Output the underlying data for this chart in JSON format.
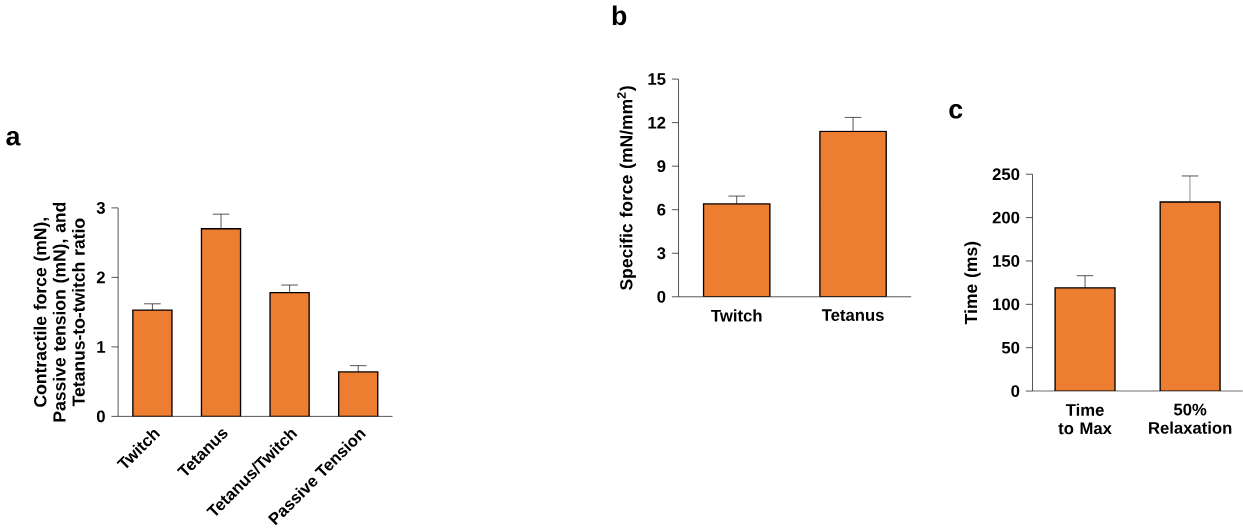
{
  "chart_data": [
    {
      "type": "bar",
      "title": "a",
      "ylabel": "Contractile force (mN), Passive tension (mN), and Tetanus-to-twitch ratio",
      "categories": [
        "Twitch",
        "Tetanus",
        "Tetanus/Twitch",
        "Passive Tension"
      ],
      "values": [
        1.53,
        2.7,
        1.78,
        0.64
      ],
      "errors": [
        0.09,
        0.21,
        0.11,
        0.09
      ],
      "color": "#ed7d31",
      "ylim": [
        0,
        3
      ],
      "yticks": [
        0,
        1,
        2,
        3
      ]
    },
    {
      "type": "bar",
      "title": "b",
      "ylabel": "Specific force (mN/mm$^{2}$)",
      "categories": [
        "Twitch",
        "Tetanus"
      ],
      "values": [
        6.4,
        11.4
      ],
      "errors": [
        0.54,
        0.96
      ],
      "color": "#ed7d31",
      "ylim": [
        0,
        15
      ],
      "yticks": [
        0,
        3,
        6,
        9,
        12,
        15
      ]
    },
    {
      "type": "bar",
      "title": "c",
      "ylabel": "Time (ms)",
      "categories": [
        "Time to Max",
        "50% Relaxation"
      ],
      "values": [
        119,
        218
      ],
      "errors": [
        14,
        30
      ],
      "color": "#ed7d31",
      "ylim": [
        0,
        250
      ],
      "yticks": [
        0,
        50,
        100,
        150,
        200,
        250
      ]
    }
  ]
}
